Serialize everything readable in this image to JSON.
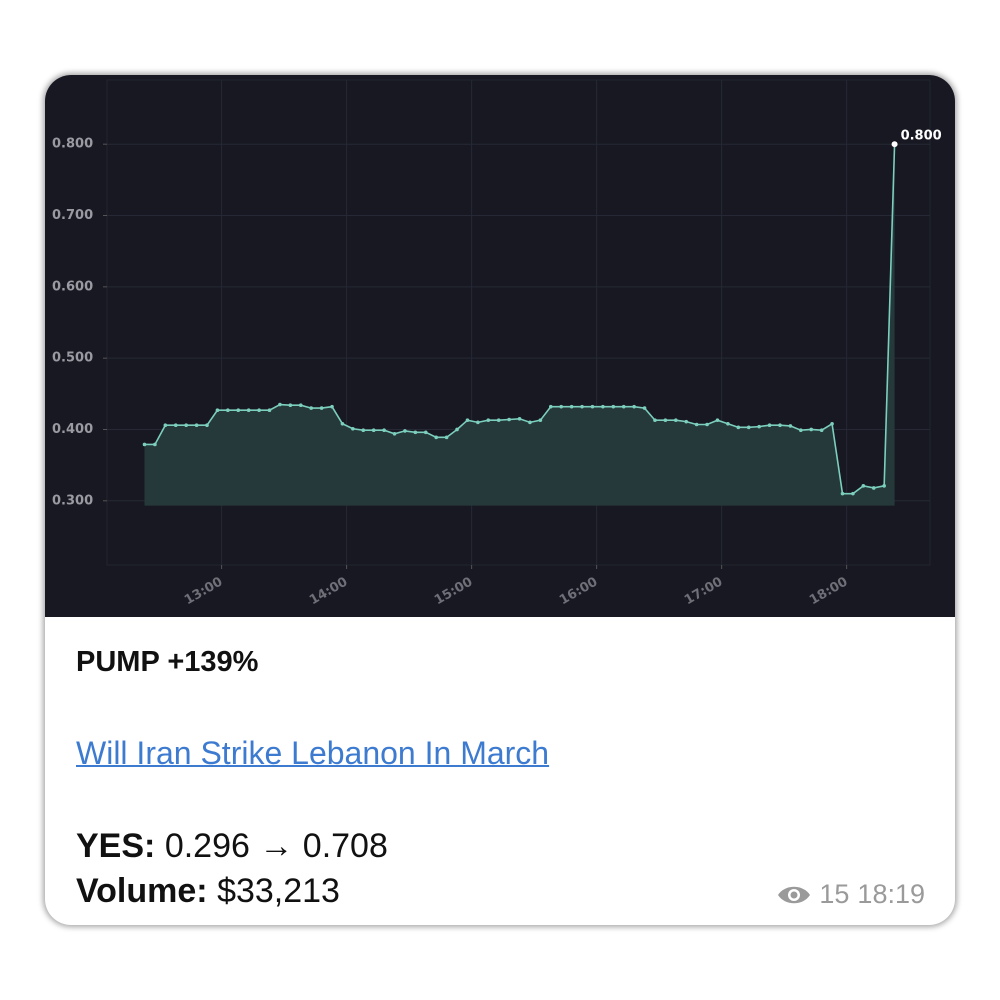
{
  "chart_data": {
    "type": "area-line",
    "x": [
      743,
      748,
      753,
      758,
      763,
      768,
      773,
      778,
      783,
      788,
      793,
      798,
      803,
      808,
      813,
      818,
      823,
      828,
      833,
      838,
      843,
      848,
      853,
      858,
      863,
      868,
      873,
      878,
      883,
      888,
      893,
      898,
      903,
      908,
      913,
      918,
      923,
      928,
      933,
      938,
      943,
      948,
      953,
      958,
      963,
      968,
      973,
      978,
      983,
      988,
      993,
      998,
      1003,
      1008,
      1013,
      1018,
      1023,
      1028,
      1033,
      1038,
      1043,
      1048,
      1053,
      1058,
      1063,
      1068,
      1073,
      1078,
      1083,
      1088,
      1093,
      1098,
      1103
    ],
    "values": [
      0.379,
      0.379,
      0.406,
      0.406,
      0.406,
      0.406,
      0.406,
      0.427,
      0.427,
      0.427,
      0.427,
      0.427,
      0.427,
      0.435,
      0.434,
      0.434,
      0.43,
      0.43,
      0.432,
      0.408,
      0.401,
      0.399,
      0.399,
      0.399,
      0.394,
      0.398,
      0.396,
      0.396,
      0.389,
      0.389,
      0.4,
      0.413,
      0.41,
      0.413,
      0.413,
      0.414,
      0.415,
      0.41,
      0.413,
      0.432,
      0.432,
      0.432,
      0.432,
      0.432,
      0.432,
      0.432,
      0.432,
      0.432,
      0.43,
      0.413,
      0.413,
      0.413,
      0.411,
      0.407,
      0.407,
      0.413,
      0.408,
      0.403,
      0.403,
      0.404,
      0.406,
      0.406,
      0.405,
      0.399,
      0.4,
      0.399,
      0.408,
      0.31,
      0.31,
      0.321,
      0.318,
      0.321,
      0.8
    ],
    "color": "#7ccfbd",
    "fill": "#25393b",
    "last_point_label": "0.800",
    "xlim": [
      725,
      1120
    ],
    "xticks": [
      {
        "value": 780,
        "label": "13:00"
      },
      {
        "value": 840,
        "label": "14:00"
      },
      {
        "value": 900,
        "label": "15:00"
      },
      {
        "value": 960,
        "label": "16:00"
      },
      {
        "value": 1020,
        "label": "17:00"
      },
      {
        "value": 1080,
        "label": "18:00"
      }
    ],
    "ylim": [
      0.21,
      0.89
    ],
    "yticks": [
      {
        "value": 0.3,
        "label": "0.300"
      },
      {
        "value": 0.4,
        "label": "0.400"
      },
      {
        "value": 0.5,
        "label": "0.500"
      },
      {
        "value": 0.6,
        "label": "0.600"
      },
      {
        "value": 0.7,
        "label": "0.700"
      },
      {
        "value": 0.8,
        "label": "0.800"
      }
    ],
    "grid": true
  },
  "message": {
    "headline": "PUMP +139%",
    "link": "Will Iran Strike Lebanon In March",
    "yes_label": "YES:",
    "yes_value": "0.296 → 0.708",
    "volume_label": "Volume:",
    "volume_value": "$33,213",
    "views": "15",
    "time": "18:19"
  }
}
